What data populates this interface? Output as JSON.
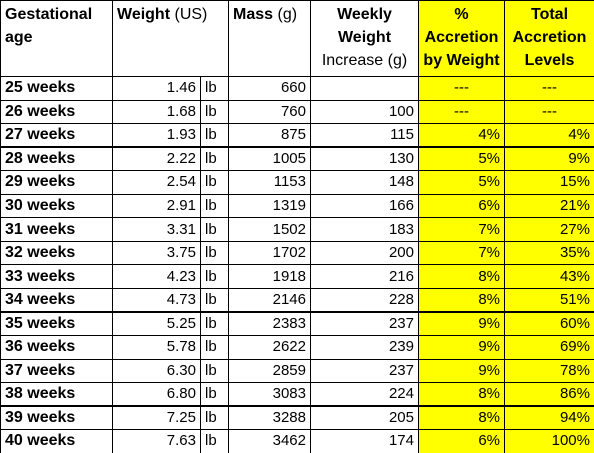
{
  "table": {
    "columns": [
      {
        "label": "Gestational age"
      },
      {
        "label": "Weight",
        "unit": "(US)"
      },
      {
        "label": "Mass",
        "unit": "(g)"
      },
      {
        "label": "Weekly Weight",
        "unit": "Increase (g)"
      },
      {
        "label": "% Accretion by Weight"
      },
      {
        "label": "Total Accretion Levels"
      }
    ],
    "rows": [
      [
        "25 weeks",
        "1.46",
        "lb",
        "660",
        null,
        "---",
        "---"
      ],
      [
        "26 weeks",
        "1.68",
        "lb",
        "760",
        "100",
        "---",
        "---"
      ],
      [
        "27 weeks",
        "1.93",
        "lb",
        "875",
        "115",
        "4%",
        "4%"
      ],
      [
        "28 weeks",
        "2.22",
        "lb",
        "1005",
        "130",
        "5%",
        "9%"
      ],
      [
        "29 weeks",
        "2.54",
        "lb",
        "1153",
        "148",
        "5%",
        "15%"
      ],
      [
        "30 weeks",
        "2.91",
        "lb",
        "1319",
        "166",
        "6%",
        "21%"
      ],
      [
        "31 weeks",
        "3.31",
        "lb",
        "1502",
        "183",
        "7%",
        "27%"
      ],
      [
        "32 weeks",
        "3.75",
        "lb",
        "1702",
        "200",
        "7%",
        "35%"
      ],
      [
        "33 weeks",
        "4.23",
        "lb",
        "1918",
        "216",
        "8%",
        "43%"
      ],
      [
        "34 weeks",
        "4.73",
        "lb",
        "2146",
        "228",
        "8%",
        "51%"
      ],
      [
        "35 weeks",
        "5.25",
        "lb",
        "2383",
        "237",
        "9%",
        "60%"
      ],
      [
        "36 weeks",
        "5.78",
        "lb",
        "2622",
        "239",
        "9%",
        "69%"
      ],
      [
        "37 weeks",
        "6.30",
        "lb",
        "2859",
        "237",
        "9%",
        "78%"
      ],
      [
        "38 weeks",
        "6.80",
        "lb",
        "3083",
        "224",
        "8%",
        "86%"
      ],
      [
        "39 weeks",
        "7.25",
        "lb",
        "3288",
        "205",
        "8%",
        "94%"
      ],
      [
        "40 weeks",
        "7.63",
        "lb",
        "3462",
        "174",
        "6%",
        "100%"
      ]
    ]
  }
}
